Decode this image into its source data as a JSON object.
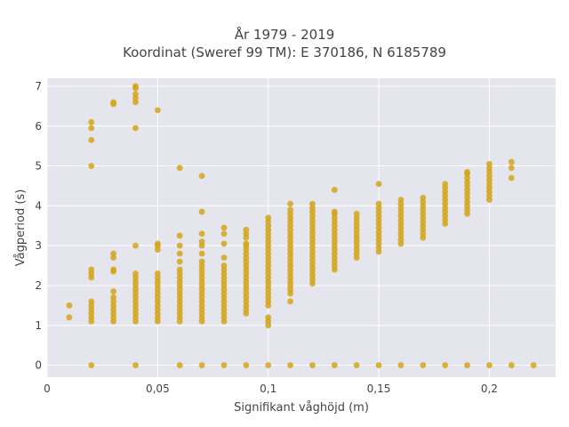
{
  "chart_data": {
    "type": "scatter",
    "title_line1": "År 1979 - 2019",
    "title_line2": "Koordinat (Sweref 99 TM): E 370186, N 6185789",
    "xlabel": "Signifikant våghöjd (m)",
    "ylabel": "Vågperiod (s)",
    "xlim": [
      0,
      0.23
    ],
    "ylim": [
      -0.3,
      7.2
    ],
    "xticks": [
      0,
      0.05,
      0.1,
      0.15,
      0.2
    ],
    "xtick_labels": [
      "0",
      "0,05",
      "0,1",
      "0,15",
      "0,2"
    ],
    "yticks": [
      0,
      1,
      2,
      3,
      4,
      5,
      6,
      7
    ],
    "ytick_labels": [
      "0",
      "1",
      "2",
      "3",
      "4",
      "5",
      "6",
      "7"
    ],
    "grid": true,
    "point_color": "#D4A418",
    "background_color": "#E5E5EE",
    "columns": [
      {
        "x": 0.01,
        "y": [
          1.2,
          1.5
        ]
      },
      {
        "x": 0.02,
        "y": [
          0.0,
          1.1,
          1.2,
          1.3,
          1.4,
          1.5,
          1.6,
          2.2,
          2.3,
          2.4,
          5.0,
          5.65,
          5.95,
          6.1
        ]
      },
      {
        "x": 0.03,
        "y": [
          1.1,
          1.2,
          1.3,
          1.4,
          1.5,
          1.6,
          1.7,
          1.85,
          2.35,
          2.4,
          2.7,
          2.8,
          6.55,
          6.6
        ]
      },
      {
        "x": 0.04,
        "y": [
          0.0,
          1.1,
          1.2,
          1.3,
          1.4,
          1.5,
          1.6,
          1.7,
          1.8,
          1.9,
          2.0,
          2.1,
          2.2,
          2.3,
          3.0,
          5.95,
          6.6,
          6.7,
          6.8,
          6.95,
          7.0
        ]
      },
      {
        "x": 0.05,
        "y": [
          1.1,
          1.2,
          1.3,
          1.4,
          1.5,
          1.6,
          1.7,
          1.8,
          1.9,
          2.0,
          2.1,
          2.2,
          2.3,
          2.9,
          3.0,
          3.05,
          6.4
        ]
      },
      {
        "x": 0.06,
        "y": [
          0.0,
          1.1,
          1.2,
          1.3,
          1.4,
          1.5,
          1.6,
          1.7,
          1.8,
          1.9,
          2.0,
          2.1,
          2.2,
          2.3,
          2.4,
          2.6,
          2.8,
          3.0,
          3.25,
          4.95
        ]
      },
      {
        "x": 0.07,
        "y": [
          0.0,
          1.1,
          1.2,
          1.3,
          1.4,
          1.5,
          1.6,
          1.7,
          1.8,
          1.9,
          2.0,
          2.1,
          2.2,
          2.3,
          2.4,
          2.5,
          2.6,
          2.8,
          3.0,
          3.1,
          3.3,
          3.85,
          4.75
        ]
      },
      {
        "x": 0.08,
        "y": [
          0.0,
          1.1,
          1.2,
          1.3,
          1.4,
          1.5,
          1.6,
          1.7,
          1.8,
          1.9,
          2.0,
          2.1,
          2.2,
          2.3,
          2.4,
          2.5,
          2.7,
          3.05,
          3.3,
          3.45
        ]
      },
      {
        "x": 0.09,
        "y": [
          0.0,
          1.3,
          1.4,
          1.5,
          1.6,
          1.7,
          1.8,
          1.9,
          2.0,
          2.1,
          2.2,
          2.3,
          2.4,
          2.5,
          2.6,
          2.7,
          2.8,
          2.9,
          3.0,
          3.05,
          3.2,
          3.3,
          3.4
        ]
      },
      {
        "x": 0.1,
        "y": [
          0.0,
          1.0,
          1.1,
          1.2,
          1.5,
          1.6,
          1.7,
          1.8,
          1.9,
          2.0,
          2.1,
          2.2,
          2.3,
          2.4,
          2.5,
          2.6,
          2.7,
          2.8,
          2.9,
          3.0,
          3.1,
          3.2,
          3.3,
          3.4,
          3.5,
          3.6,
          3.7
        ]
      },
      {
        "x": 0.11,
        "y": [
          0.0,
          1.6,
          1.8,
          1.9,
          2.0,
          2.1,
          2.2,
          2.3,
          2.4,
          2.5,
          2.6,
          2.7,
          2.8,
          2.9,
          3.0,
          3.1,
          3.2,
          3.3,
          3.4,
          3.5,
          3.6,
          3.7,
          3.8,
          3.9,
          4.05
        ]
      },
      {
        "x": 0.12,
        "y": [
          0.0,
          2.05,
          2.15,
          2.25,
          2.35,
          2.45,
          2.55,
          2.65,
          2.75,
          2.85,
          2.95,
          3.05,
          3.15,
          3.25,
          3.35,
          3.45,
          3.55,
          3.65,
          3.75,
          3.85,
          3.95,
          4.05
        ]
      },
      {
        "x": 0.13,
        "y": [
          0.0,
          2.4,
          2.5,
          2.6,
          2.7,
          2.8,
          2.9,
          3.0,
          3.1,
          3.2,
          3.3,
          3.4,
          3.5,
          3.6,
          3.7,
          3.8,
          3.85,
          4.4
        ]
      },
      {
        "x": 0.14,
        "y": [
          0.0,
          2.7,
          2.8,
          2.9,
          3.0,
          3.1,
          3.2,
          3.3,
          3.4,
          3.5,
          3.6,
          3.7,
          3.8
        ]
      },
      {
        "x": 0.15,
        "y": [
          0.0,
          2.85,
          2.95,
          3.05,
          3.15,
          3.25,
          3.35,
          3.45,
          3.55,
          3.65,
          3.75,
          3.85,
          3.95,
          4.05,
          4.55
        ]
      },
      {
        "x": 0.16,
        "y": [
          0.0,
          3.05,
          3.15,
          3.25,
          3.35,
          3.45,
          3.55,
          3.65,
          3.75,
          3.85,
          3.95,
          4.05,
          4.15
        ]
      },
      {
        "x": 0.17,
        "y": [
          0.0,
          3.2,
          3.3,
          3.4,
          3.5,
          3.6,
          3.7,
          3.8,
          3.9,
          4.0,
          4.1,
          4.2
        ]
      },
      {
        "x": 0.18,
        "y": [
          0.0,
          3.55,
          3.65,
          3.75,
          3.85,
          3.95,
          4.05,
          4.15,
          4.25,
          4.35,
          4.45,
          4.55
        ]
      },
      {
        "x": 0.19,
        "y": [
          0.0,
          3.8,
          3.9,
          4.0,
          4.1,
          4.2,
          4.3,
          4.4,
          4.5,
          4.6,
          4.7,
          4.8,
          4.85
        ]
      },
      {
        "x": 0.2,
        "y": [
          0.0,
          4.15,
          4.25,
          4.35,
          4.45,
          4.55,
          4.65,
          4.75,
          4.85,
          4.95,
          5.05
        ]
      },
      {
        "x": 0.21,
        "y": [
          0.0,
          4.7,
          4.95,
          5.1
        ]
      },
      {
        "x": 0.22,
        "y": [
          0.0
        ]
      }
    ]
  }
}
